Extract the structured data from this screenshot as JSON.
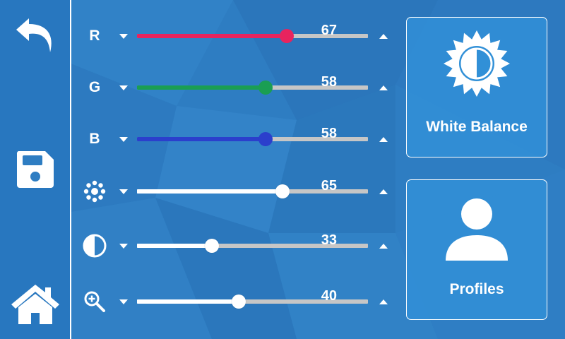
{
  "colors": {
    "background": "#2f7fc4",
    "red": "#e8245e",
    "green": "#1a9e53",
    "blue": "#2b3fcc",
    "white": "#ffffff",
    "track": "#c6c6c6"
  },
  "sidebar": {
    "back_icon": "back-arrow-icon",
    "save_icon": "floppy-disk-icon",
    "home_icon": "home-icon"
  },
  "sliders": [
    {
      "id": "red",
      "label": "R",
      "value": "67",
      "fraction": 0.648,
      "color": "#e8245e"
    },
    {
      "id": "green",
      "label": "G",
      "value": "58",
      "fraction": 0.556,
      "color": "#1a9e53"
    },
    {
      "id": "blue",
      "label": "B",
      "value": "58",
      "fraction": 0.556,
      "color": "#2b3fcc"
    },
    {
      "id": "brightness",
      "label": "",
      "icon": "brightness-icon",
      "value": "65",
      "fraction": 0.63,
      "color": "#ffffff"
    },
    {
      "id": "contrast",
      "label": "",
      "icon": "contrast-icon",
      "value": "33",
      "fraction": 0.325,
      "color": "#ffffff"
    },
    {
      "id": "zoom",
      "label": "",
      "icon": "zoom-in-icon",
      "value": "40",
      "fraction": 0.44,
      "color": "#ffffff"
    }
  ],
  "panels": {
    "white_balance": {
      "label": "White Balance",
      "icon": "sun-half-icon"
    },
    "profiles": {
      "label": "Profiles",
      "icon": "user-icon"
    }
  }
}
